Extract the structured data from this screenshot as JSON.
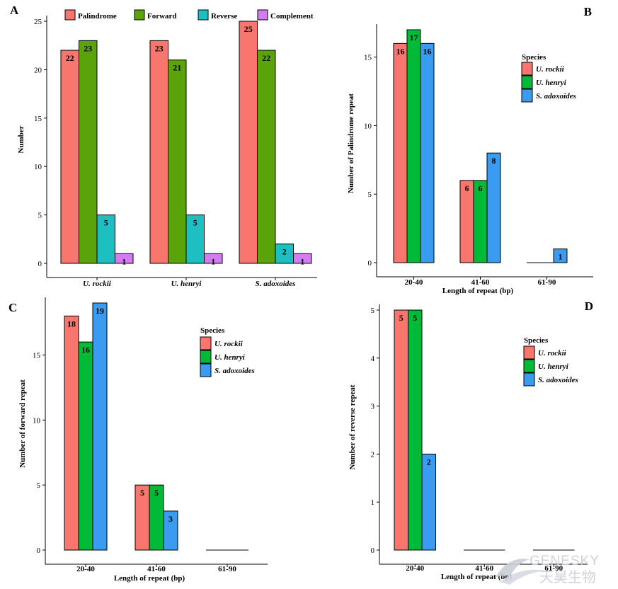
{
  "chart_data": [
    {
      "panel": "A",
      "type": "bar",
      "categories": [
        "U. rockii",
        "U. henryi",
        "S. adoxoides"
      ],
      "series": [
        {
          "name": "Palindrome",
          "color": "#f8766d",
          "values": [
            22,
            23,
            25
          ]
        },
        {
          "name": "Forward",
          "color": "#5ba30a",
          "values": [
            23,
            21,
            22
          ]
        },
        {
          "name": "Reverse",
          "color": "#1ebfc3",
          "values": [
            5,
            5,
            2
          ]
        },
        {
          "name": "Complement",
          "color": "#d37cf2",
          "values": [
            1,
            1,
            1
          ]
        }
      ],
      "ylabel": "Number",
      "xlabel": "",
      "ylim": [
        0,
        25
      ],
      "yticks": [
        "0",
        "5",
        "10",
        "15",
        "20",
        "25"
      ],
      "legend_position": "top",
      "legend_title": ""
    },
    {
      "panel": "B",
      "type": "bar",
      "categories": [
        "20-40",
        "41-60",
        "61-90"
      ],
      "series": [
        {
          "name": "U. rockii",
          "color": "#f8766d",
          "values": [
            16,
            6,
            0
          ]
        },
        {
          "name": "U. henryi",
          "color": "#00ba38",
          "values": [
            17,
            6,
            0
          ]
        },
        {
          "name": "S. adoxoides",
          "color": "#3a9bf0",
          "values": [
            16,
            8,
            1
          ]
        }
      ],
      "ylabel": "Number  of Palindrome repeat",
      "xlabel": "Length of repeat (bp)",
      "ylim": [
        0,
        17
      ],
      "yticks": [
        "0",
        "5",
        "10",
        "15"
      ],
      "legend_position": "right",
      "legend_title": "Species"
    },
    {
      "panel": "C",
      "type": "bar",
      "categories": [
        "20-40",
        "41-60",
        "61-90"
      ],
      "series": [
        {
          "name": "U. rockii",
          "color": "#f8766d",
          "values": [
            18,
            5,
            0
          ]
        },
        {
          "name": "U. henryi",
          "color": "#00ba38",
          "values": [
            16,
            5,
            0
          ]
        },
        {
          "name": "S. adoxoides",
          "color": "#3a9bf0",
          "values": [
            19,
            3,
            0
          ]
        }
      ],
      "ylabel": "Number of forward repeat",
      "xlabel": "Length of repeat (bp)",
      "ylim": [
        0,
        19
      ],
      "yticks": [
        "0",
        "5",
        "10",
        "15"
      ],
      "legend_position": "right",
      "legend_title": "Species"
    },
    {
      "panel": "D",
      "type": "bar",
      "categories": [
        "20-40",
        "41-60",
        "61-90"
      ],
      "series": [
        {
          "name": "U. rockii",
          "color": "#f8766d",
          "values": [
            5,
            0,
            0
          ]
        },
        {
          "name": "U. henryi",
          "color": "#00ba38",
          "values": [
            5,
            0,
            0
          ]
        },
        {
          "name": "S. adoxoides",
          "color": "#3a9bf0",
          "values": [
            2,
            0,
            0
          ]
        }
      ],
      "ylabel": "Number of reverse repeat",
      "xlabel": "Length of repeat (bp)",
      "ylim": [
        0,
        5
      ],
      "yticks": [
        "0",
        "1",
        "2",
        "3",
        "4",
        "5"
      ],
      "legend_position": "right",
      "legend_title": "Species"
    }
  ],
  "watermark": {
    "en": "GENESKY",
    "cn": "天昊生物"
  }
}
